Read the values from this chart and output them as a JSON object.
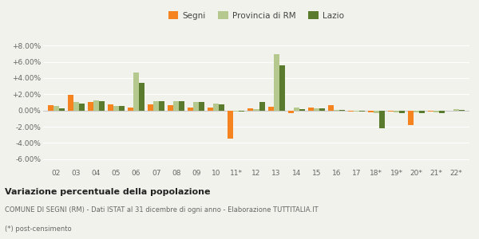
{
  "categories": [
    "02",
    "03",
    "04",
    "05",
    "06",
    "07",
    "08",
    "09",
    "10",
    "11*",
    "12",
    "13",
    "14",
    "15",
    "16",
    "17",
    "18*",
    "19*",
    "20*",
    "21*",
    "22*"
  ],
  "segni": [
    0.7,
    1.9,
    1.1,
    0.8,
    0.4,
    0.8,
    0.7,
    0.4,
    0.4,
    -3.5,
    0.25,
    0.5,
    -0.3,
    0.35,
    0.65,
    -0.1,
    -0.2,
    -0.15,
    -1.8,
    -0.15,
    -0.05
  ],
  "prov_rm": [
    0.55,
    1.1,
    1.25,
    0.6,
    4.7,
    1.2,
    1.2,
    1.1,
    0.9,
    -0.1,
    0.2,
    6.9,
    0.35,
    0.3,
    0.1,
    -0.1,
    -0.35,
    -0.25,
    -0.2,
    -0.25,
    0.2
  ],
  "lazio": [
    0.3,
    0.85,
    1.2,
    0.55,
    3.45,
    1.15,
    1.15,
    1.05,
    0.8,
    -0.15,
    1.05,
    5.6,
    0.2,
    0.25,
    0.1,
    -0.1,
    -2.2,
    -0.3,
    -0.3,
    -0.3,
    0.1
  ],
  "color_segni": "#f5831f",
  "color_prov": "#b5c98e",
  "color_lazio": "#5a7a2e",
  "ylim": [
    -7.0,
    9.5
  ],
  "yticks": [
    -6.0,
    -4.0,
    -2.0,
    0.0,
    2.0,
    4.0,
    6.0,
    8.0
  ],
  "ytick_labels": [
    "-6.00%",
    "-4.00%",
    "-2.00%",
    "0.00%",
    "+2.00%",
    "+4.00%",
    "+6.00%",
    "+8.00%"
  ],
  "title_bold": "Variazione percentuale della popolazione",
  "subtitle": "COMUNE DI SEGNI (RM) - Dati ISTAT al 31 dicembre di ogni anno - Elaborazione TUTTITALIA.IT",
  "footnote": "(*) post-censimento",
  "legend_labels": [
    "Segni",
    "Provincia di RM",
    "Lazio"
  ],
  "bg_color": "#f2f2ed",
  "grid_color": "#ffffff",
  "bar_width": 0.28
}
